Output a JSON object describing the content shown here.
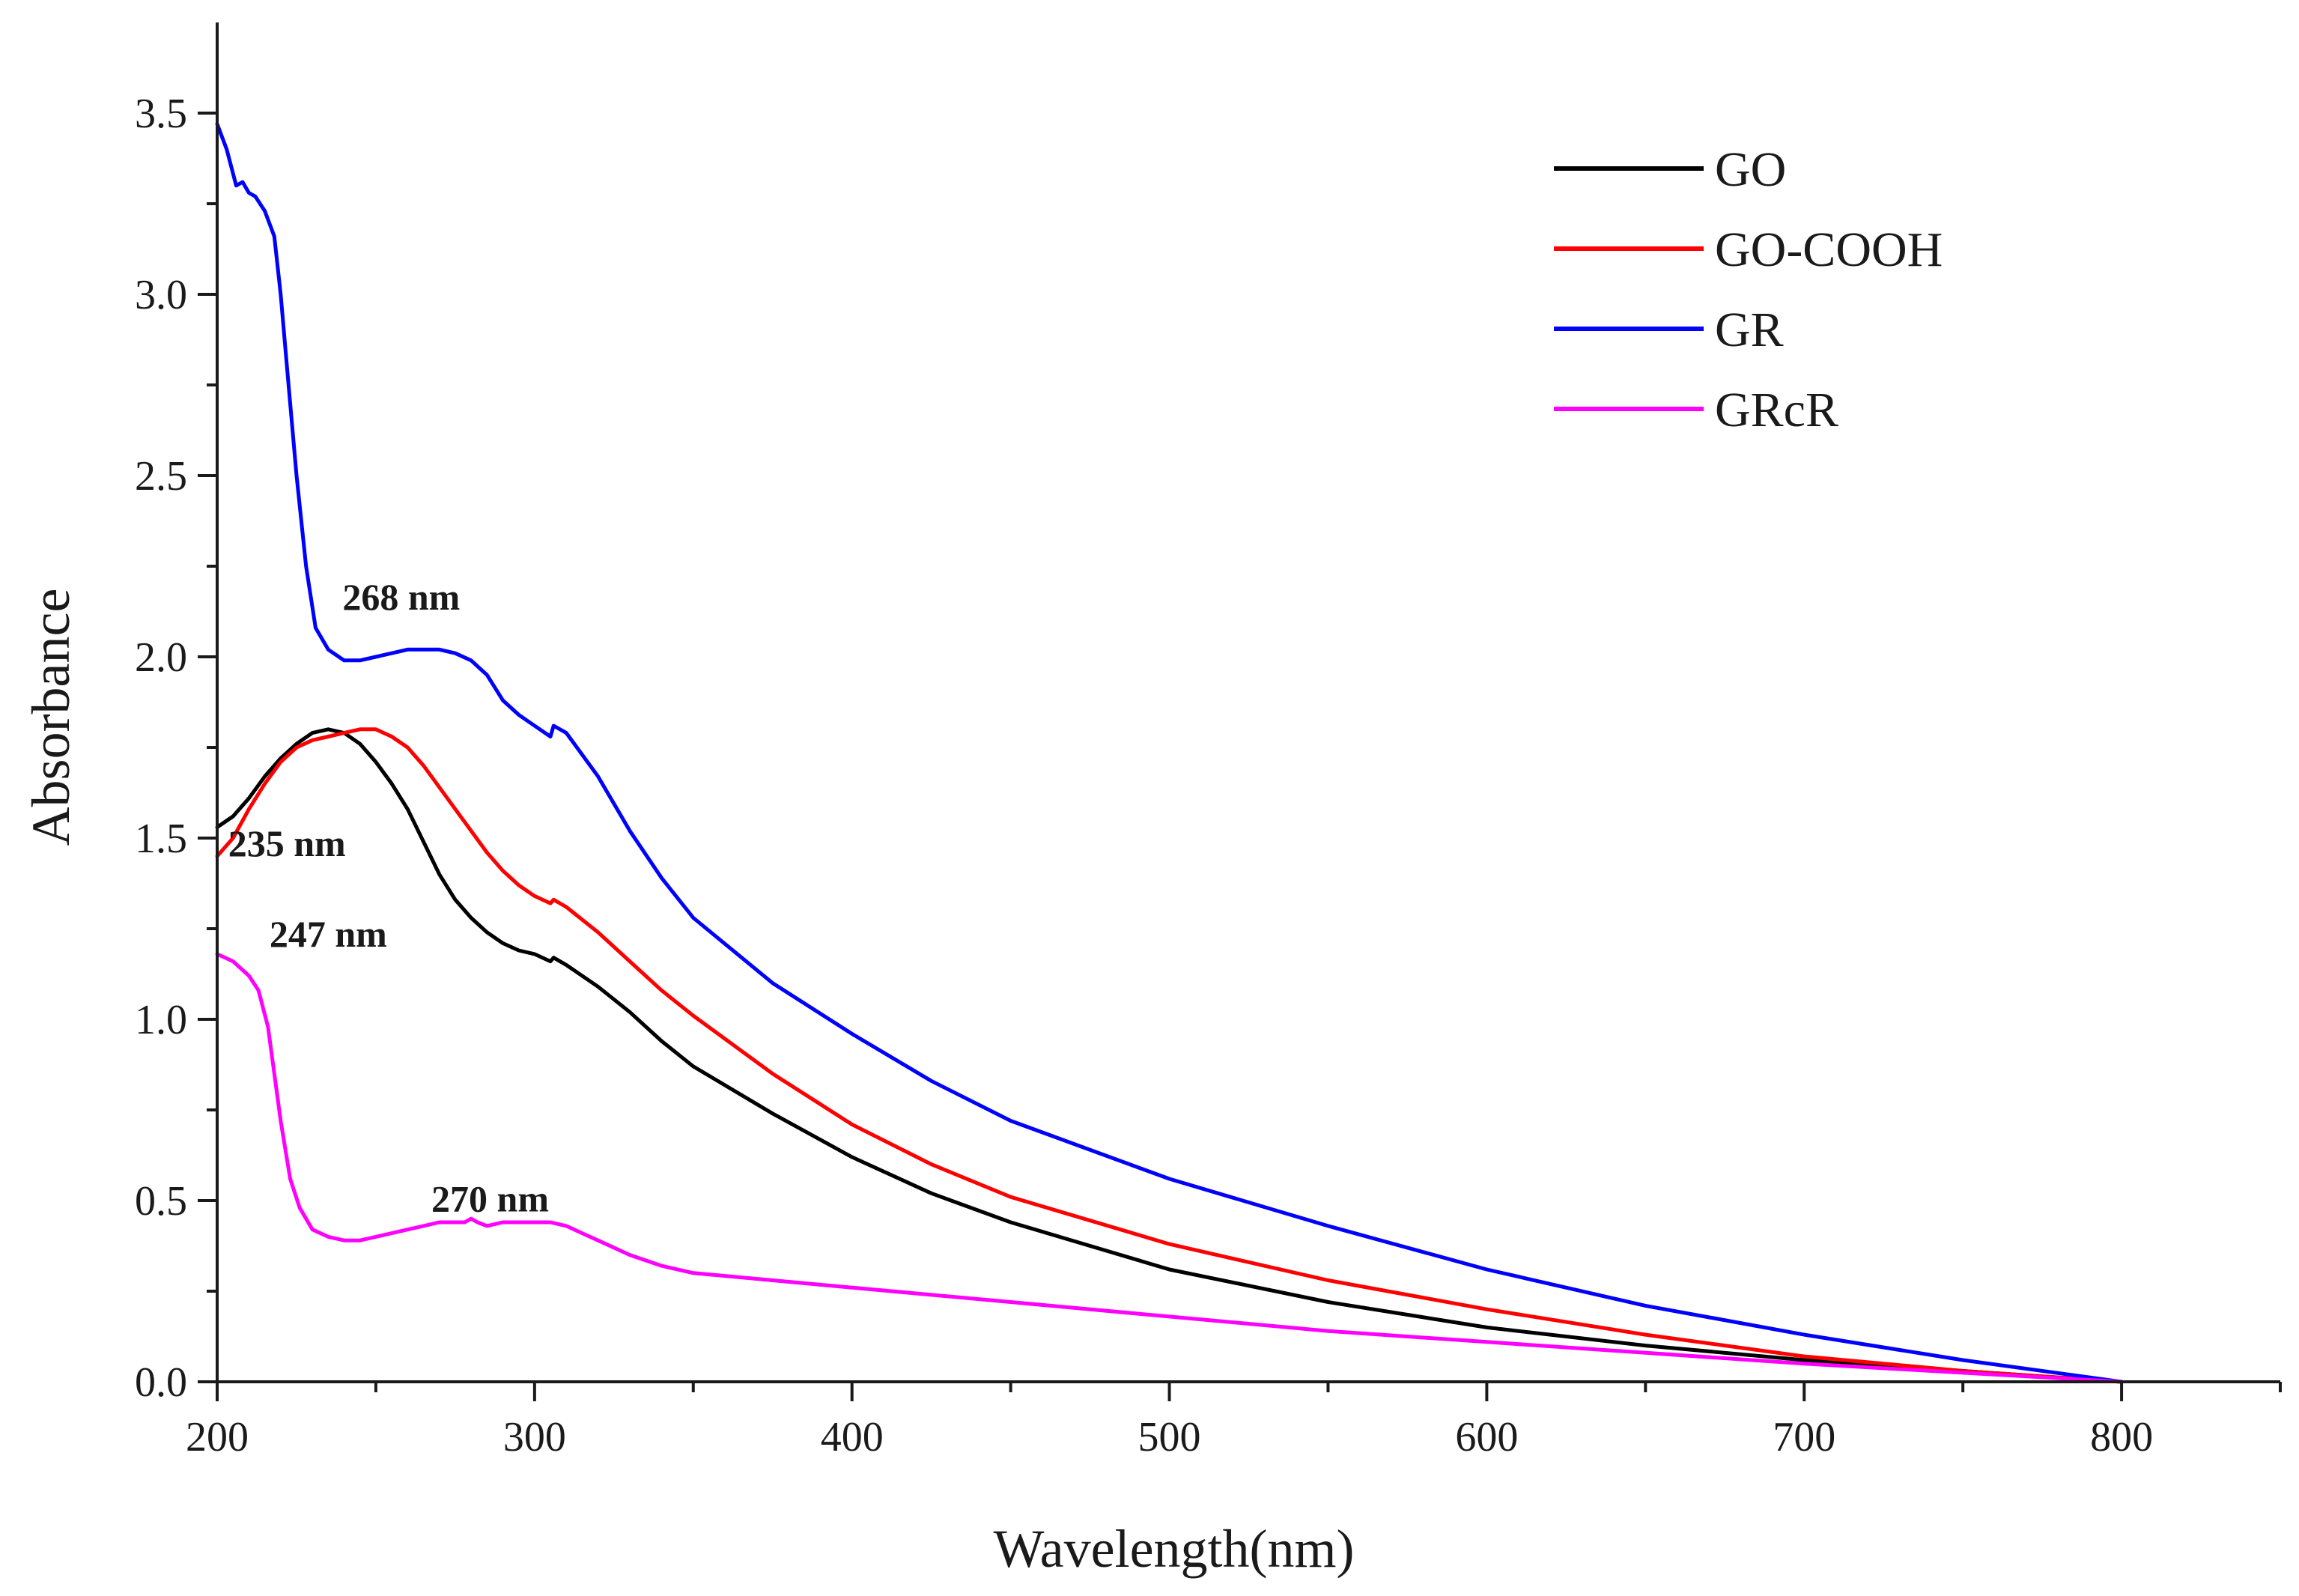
{
  "chart_data": {
    "type": "line",
    "title": "",
    "xlabel": "Wavelength(nm)",
    "ylabel": "Absorbance",
    "xlim": [
      200,
      850
    ],
    "ylim": [
      0,
      3.75
    ],
    "grid": false,
    "legend_position": "top-right",
    "x_ticks": [
      200,
      300,
      400,
      500,
      600,
      700,
      800
    ],
    "x_tick_labels": [
      "200",
      "300",
      "400",
      "500",
      "600",
      "700",
      "800"
    ],
    "y_ticks": [
      0,
      0.5,
      1.0,
      1.5,
      2.0,
      2.5,
      3.0,
      3.5
    ],
    "y_tick_labels": [
      "0.0",
      "0.5",
      "1.0",
      "1.5",
      "2.0",
      "2.5",
      "3.0",
      "3.5"
    ],
    "series": [
      {
        "name": "GO",
        "color": "#000000",
        "x": [
          200,
          205,
          210,
          215,
          220,
          225,
          230,
          235,
          240,
          245,
          250,
          255,
          260,
          265,
          270,
          275,
          280,
          285,
          290,
          295,
          300,
          305,
          306,
          310,
          320,
          330,
          340,
          350,
          375,
          400,
          425,
          450,
          500,
          550,
          600,
          650,
          700,
          750,
          800
        ],
        "y": [
          1.53,
          1.56,
          1.61,
          1.67,
          1.72,
          1.76,
          1.79,
          1.8,
          1.79,
          1.76,
          1.71,
          1.65,
          1.58,
          1.49,
          1.4,
          1.33,
          1.28,
          1.24,
          1.21,
          1.19,
          1.18,
          1.16,
          1.17,
          1.15,
          1.09,
          1.02,
          0.94,
          0.87,
          0.74,
          0.62,
          0.52,
          0.44,
          0.31,
          0.22,
          0.15,
          0.1,
          0.06,
          0.03,
          0.0
        ]
      },
      {
        "name": "GO-COOH",
        "color": "#ff0000",
        "x": [
          200,
          205,
          210,
          215,
          220,
          225,
          230,
          235,
          240,
          245,
          247,
          250,
          255,
          260,
          265,
          270,
          275,
          280,
          285,
          290,
          295,
          300,
          305,
          306,
          310,
          320,
          330,
          340,
          350,
          375,
          400,
          425,
          450,
          500,
          550,
          600,
          650,
          700,
          750,
          800
        ],
        "y": [
          1.45,
          1.5,
          1.58,
          1.65,
          1.71,
          1.75,
          1.77,
          1.78,
          1.79,
          1.8,
          1.8,
          1.8,
          1.78,
          1.75,
          1.7,
          1.64,
          1.58,
          1.52,
          1.46,
          1.41,
          1.37,
          1.34,
          1.32,
          1.33,
          1.31,
          1.24,
          1.16,
          1.08,
          1.01,
          0.85,
          0.71,
          0.6,
          0.51,
          0.38,
          0.28,
          0.2,
          0.13,
          0.07,
          0.03,
          0.0
        ]
      },
      {
        "name": "GR",
        "color": "#0000ff",
        "x": [
          200,
          203,
          206,
          208,
          210,
          212,
          215,
          218,
          220,
          222,
          225,
          228,
          231,
          235,
          240,
          245,
          250,
          255,
          260,
          265,
          270,
          275,
          280,
          285,
          290,
          295,
          300,
          305,
          306,
          310,
          320,
          330,
          340,
          350,
          375,
          400,
          425,
          450,
          500,
          550,
          600,
          650,
          700,
          750,
          800
        ],
        "y": [
          3.47,
          3.4,
          3.3,
          3.31,
          3.28,
          3.27,
          3.23,
          3.16,
          3.0,
          2.8,
          2.5,
          2.25,
          2.08,
          2.02,
          1.99,
          1.99,
          2.0,
          2.01,
          2.02,
          2.02,
          2.02,
          2.01,
          1.99,
          1.95,
          1.88,
          1.84,
          1.81,
          1.78,
          1.81,
          1.79,
          1.67,
          1.52,
          1.39,
          1.28,
          1.1,
          0.96,
          0.83,
          0.72,
          0.56,
          0.43,
          0.31,
          0.21,
          0.13,
          0.06,
          0.0
        ]
      },
      {
        "name": "GRcR",
        "color": "#ff00ff",
        "x": [
          200,
          205,
          210,
          213,
          216,
          218,
          220,
          223,
          226,
          230,
          235,
          240,
          245,
          250,
          255,
          260,
          265,
          270,
          275,
          278,
          280,
          282,
          285,
          290,
          295,
          300,
          305,
          310,
          315,
          320,
          330,
          340,
          350,
          375,
          400,
          450,
          500,
          550,
          600,
          650,
          700,
          750,
          800
        ],
        "y": [
          1.18,
          1.16,
          1.12,
          1.08,
          0.98,
          0.85,
          0.72,
          0.56,
          0.48,
          0.42,
          0.4,
          0.39,
          0.39,
          0.4,
          0.41,
          0.42,
          0.43,
          0.44,
          0.44,
          0.44,
          0.45,
          0.44,
          0.43,
          0.44,
          0.44,
          0.44,
          0.44,
          0.43,
          0.41,
          0.39,
          0.35,
          0.32,
          0.3,
          0.28,
          0.26,
          0.22,
          0.18,
          0.14,
          0.11,
          0.08,
          0.05,
          0.025,
          0.0
        ]
      }
    ],
    "annotations": [
      {
        "text": "235 nm",
        "x": 222,
        "y": 1.45
      },
      {
        "text": "247 nm",
        "x": 235,
        "y": 1.2
      },
      {
        "text": "268 nm",
        "x": 258,
        "y": 2.13
      },
      {
        "text": "270 nm",
        "x": 286,
        "y": 0.47
      }
    ]
  }
}
